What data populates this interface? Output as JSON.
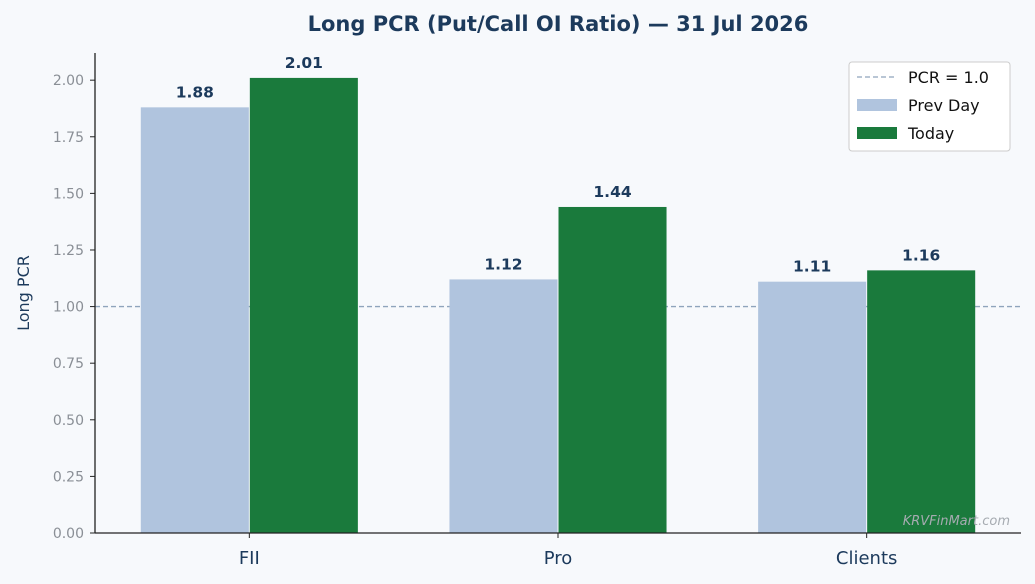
{
  "chart_data": {
    "type": "bar",
    "title": "Long PCR (Put/Call OI Ratio) — 31 Jul 2026",
    "xlabel": "",
    "ylabel": "Long PCR",
    "categories": [
      "FII",
      "Pro",
      "Clients"
    ],
    "series": [
      {
        "name": "Prev Day",
        "values": [
          1.88,
          1.12,
          1.11
        ],
        "labels": [
          "1.88",
          "1.12",
          "1.11"
        ],
        "color": "#b0c4de"
      },
      {
        "name": "Today",
        "values": [
          2.01,
          1.44,
          1.16
        ],
        "labels": [
          "2.01",
          "1.44",
          "1.16"
        ],
        "color": "#1a7a3c"
      }
    ],
    "ylim": [
      0,
      2.12
    ],
    "yticks": [
      0,
      0.25,
      0.5,
      0.75,
      1.0,
      1.25,
      1.5,
      1.75,
      2.0
    ],
    "ytick_labels": [
      "0.00",
      "0.25",
      "0.50",
      "0.75",
      "1.00",
      "1.25",
      "1.50",
      "1.75",
      "2.00"
    ],
    "reference_line": {
      "value": 1.0,
      "label": "PCR = 1.0",
      "color": "#8fa4bc"
    },
    "grid": false,
    "legend_position": "top-right",
    "watermark": "KRVFinMart.com"
  }
}
